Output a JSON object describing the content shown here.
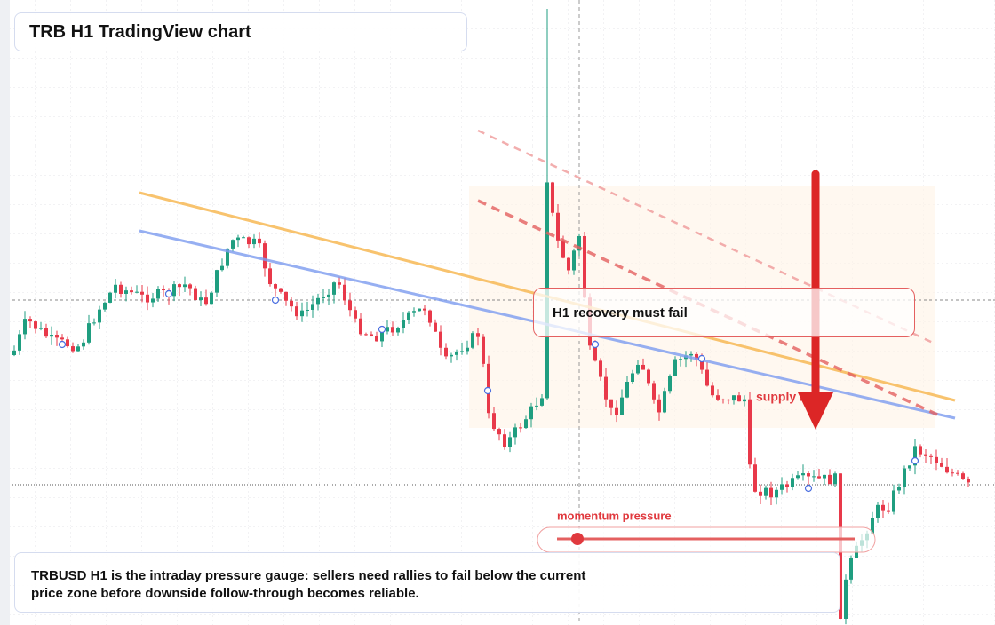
{
  "header": {
    "title": "TRB H1 TradingView chart"
  },
  "annotations": {
    "callout": "H1 recovery must fail",
    "zone_label": "supply zone",
    "gauge_label": "momentum pressure"
  },
  "footer": {
    "text": "TRBUSD H1 is the intraday pressure gauge: sellers need rallies to fail below the current price zone before downside follow-through becomes reliable."
  }
}
